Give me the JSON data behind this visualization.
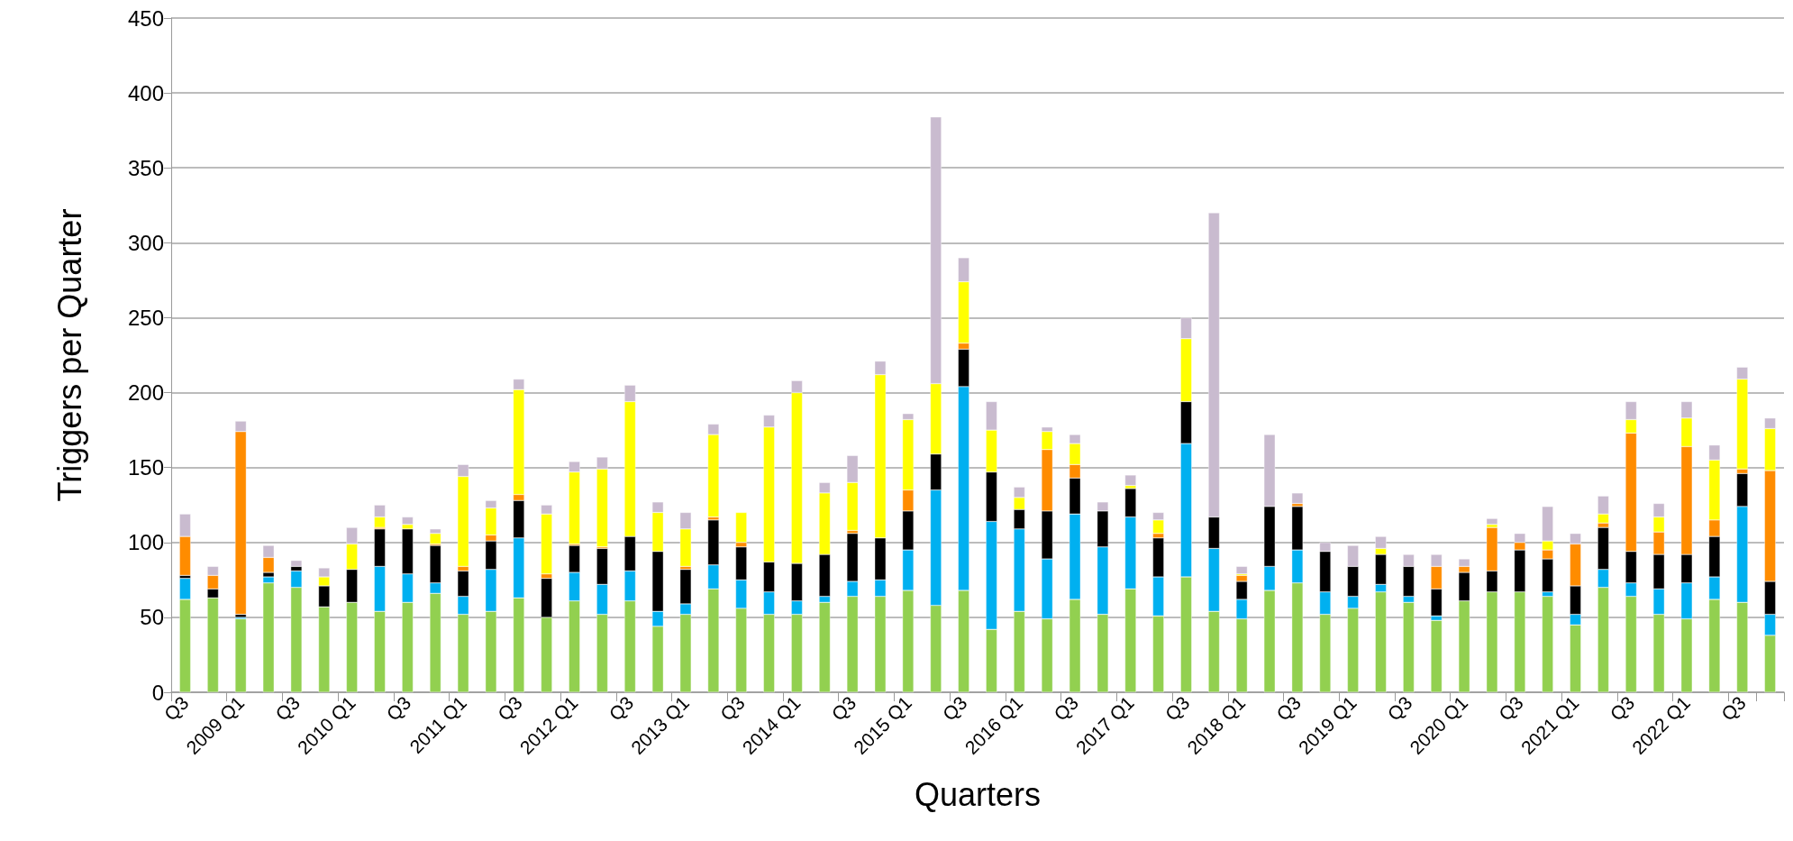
{
  "chart_data": {
    "type": "bar",
    "stacked": true,
    "xlabel": "Quarters",
    "ylabel": "Triggers per Quarter",
    "categories": [
      "Q3",
      null,
      "2009 Q1",
      null,
      "Q3",
      null,
      "2010 Q1",
      null,
      "Q3",
      null,
      "2011 Q1",
      null,
      "Q3",
      null,
      "2012 Q1",
      null,
      "Q3",
      null,
      "2013 Q1",
      null,
      "Q3",
      null,
      "2014 Q1",
      null,
      "Q3",
      null,
      "2015 Q1",
      null,
      "Q3",
      null,
      "2016 Q1",
      null,
      "Q3",
      null,
      "2017 Q1",
      null,
      "Q3",
      null,
      "2018 Q1",
      null,
      "Q3",
      null,
      "2019 Q1",
      null,
      "Q3",
      null,
      "2020 Q1",
      null,
      "Q3",
      null,
      "2021 Q1",
      null,
      "Q3",
      null,
      "2022 Q1",
      null,
      "Q3",
      null
    ],
    "series": [
      {
        "color": "#92d050",
        "values": [
          62,
          63,
          49,
          73,
          70,
          57,
          60,
          54,
          60,
          66,
          52,
          54,
          63,
          50,
          61,
          52,
          61,
          44,
          52,
          69,
          56,
          52,
          52,
          60,
          64,
          64,
          68,
          58,
          68,
          42,
          54,
          49,
          62,
          52,
          69,
          51,
          77,
          54,
          49,
          68,
          73,
          52,
          56,
          67,
          60,
          48,
          61,
          67,
          67,
          64,
          45,
          70,
          64,
          52,
          49,
          62,
          60,
          38
        ]
      },
      {
        "color": "#00b0f0",
        "values": [
          14,
          0,
          1,
          4,
          11,
          0,
          0,
          30,
          19,
          7,
          12,
          28,
          40,
          0,
          19,
          20,
          20,
          10,
          7,
          16,
          19,
          15,
          9,
          4,
          10,
          11,
          27,
          77,
          136,
          72,
          55,
          40,
          57,
          45,
          48,
          26,
          89,
          42,
          13,
          16,
          22,
          15,
          8,
          5,
          4,
          3,
          0,
          0,
          0,
          3,
          7,
          12,
          9,
          17,
          24,
          15,
          64,
          14
        ]
      },
      {
        "color": "#000000",
        "values": [
          2,
          6,
          2,
          3,
          3,
          14,
          22,
          25,
          30,
          25,
          17,
          19,
          25,
          26,
          18,
          24,
          23,
          40,
          23,
          30,
          22,
          20,
          25,
          28,
          32,
          28,
          26,
          24,
          25,
          33,
          13,
          32,
          24,
          24,
          19,
          26,
          28,
          21,
          12,
          40,
          29,
          27,
          20,
          20,
          20,
          18,
          19,
          14,
          28,
          22,
          19,
          28,
          21,
          23,
          19,
          27,
          22,
          22
        ]
      },
      {
        "color": "#ff8c00",
        "values": [
          26,
          9,
          122,
          10,
          0,
          0,
          0,
          1,
          0,
          1,
          3,
          4,
          4,
          3,
          1,
          1,
          0,
          0,
          2,
          2,
          3,
          0,
          0,
          0,
          2,
          0,
          14,
          0,
          4,
          0,
          0,
          41,
          9,
          0,
          0,
          3,
          0,
          0,
          4,
          0,
          2,
          0,
          0,
          0,
          0,
          15,
          4,
          29,
          5,
          6,
          28,
          3,
          79,
          15,
          72,
          11,
          3,
          74
        ]
      },
      {
        "color": "#ffff00",
        "values": [
          0,
          0,
          0,
          0,
          0,
          6,
          17,
          7,
          3,
          7,
          60,
          18,
          70,
          40,
          48,
          52,
          90,
          26,
          25,
          55,
          20,
          90,
          114,
          41,
          32,
          109,
          47,
          47,
          41,
          28,
          8,
          12,
          14,
          0,
          2,
          9,
          42,
          0,
          1,
          0,
          0,
          0,
          0,
          4,
          0,
          0,
          0,
          2,
          0,
          6,
          0,
          6,
          9,
          10,
          19,
          40,
          60,
          28
        ]
      },
      {
        "color": "#c9bbcf",
        "values": [
          15,
          6,
          7,
          8,
          4,
          6,
          11,
          8,
          5,
          3,
          8,
          5,
          7,
          6,
          7,
          8,
          11,
          7,
          11,
          7,
          0,
          8,
          8,
          7,
          18,
          9,
          4,
          178,
          16,
          19,
          7,
          3,
          6,
          6,
          7,
          5,
          14,
          203,
          5,
          48,
          7,
          6,
          14,
          8,
          8,
          8,
          5,
          4,
          6,
          23,
          7,
          12,
          12,
          9,
          11,
          10,
          8,
          7
        ]
      }
    ],
    "ylim": [
      0,
      450
    ],
    "yticks": [
      0,
      50,
      100,
      150,
      200,
      250,
      300,
      350,
      400,
      450
    ],
    "grid": "y"
  }
}
